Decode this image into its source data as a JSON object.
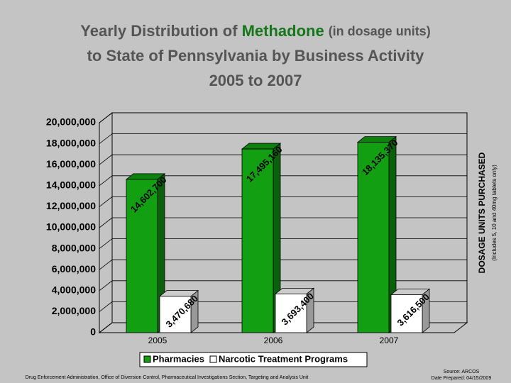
{
  "chart_data": {
    "type": "bar3d",
    "title": [
      [
        "Yearly Distribution of",
        "Methadone",
        "(in dosage units)"
      ],
      [
        "to State of Pennsylvania by Business Activity"
      ],
      [
        "2005 to 2007"
      ]
    ],
    "y_label": "DOSAGE UNITS PURCHASED",
    "y_sublabel": "(Includes 5, 10 and 40mg tablets only)",
    "categories": [
      "2005",
      "2006",
      "2007"
    ],
    "series": [
      {
        "name": "Pharmacies",
        "color": "#12a012",
        "values": [
          14602700,
          17495160,
          18135370
        ],
        "value_labels": [
          "14,602,700",
          "17,495,160",
          "18,135,370"
        ]
      },
      {
        "name": "Narcotic Treatment Programs",
        "color": "#ffffff",
        "values": [
          3470680,
          3693400,
          3616500
        ],
        "value_labels": [
          "3,470,680",
          "3,693,400",
          "3,616,500"
        ]
      }
    ],
    "ylim": [
      0,
      20000000
    ],
    "yticks": [
      {
        "value": 0,
        "label": "0"
      },
      {
        "value": 2000000,
        "label": "2,000,000"
      },
      {
        "value": 4000000,
        "label": "4,000,000"
      },
      {
        "value": 6000000,
        "label": "6,000,000"
      },
      {
        "value": 8000000,
        "label": "8,000,000"
      },
      {
        "value": 10000000,
        "label": "10,000,000"
      },
      {
        "value": 12000000,
        "label": "12,000,000"
      },
      {
        "value": 14000000,
        "label": "14,000,000"
      },
      {
        "value": 16000000,
        "label": "16,000,000"
      },
      {
        "value": 18000000,
        "label": "18,000,000"
      },
      {
        "value": 20000000,
        "label": "20,000,000"
      }
    ],
    "grid": true,
    "footer": "Drug Enforcement Administration, Office of Diversion Control, Pharmaceutical Investigations Section, Targeting and Analysis Unit",
    "source": "Source: ARCOS",
    "date": "Date Prepared: 04/15/2009"
  }
}
